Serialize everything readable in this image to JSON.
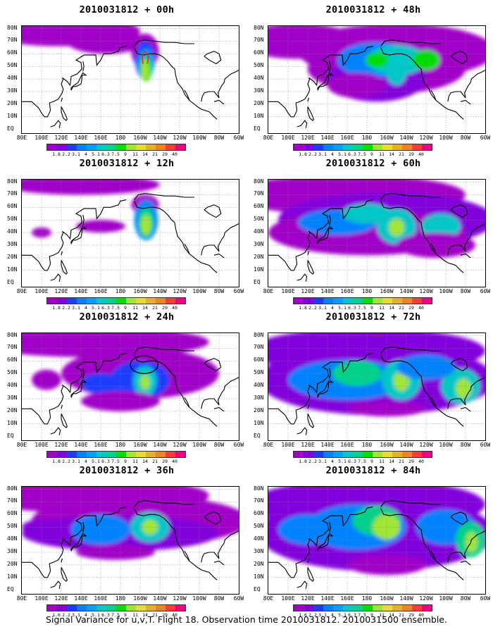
{
  "panels": [
    {
      "title": "2010031812 + 00h"
    },
    {
      "title": "2010031812 + 48h"
    },
    {
      "title": "2010031812 + 12h"
    },
    {
      "title": "2010031812 + 60h"
    },
    {
      "title": "2010031812 + 24h"
    },
    {
      "title": "2010031812 + 72h"
    },
    {
      "title": "2010031812 + 36h"
    },
    {
      "title": "2010031812 + 84h"
    }
  ],
  "lat_labels": [
    "80N",
    "70N",
    "60N",
    "50N",
    "40N",
    "30N",
    "20N",
    "10N",
    "EQ"
  ],
  "lon_labels": [
    "80E",
    "100E",
    "120E",
    "140E",
    "160E",
    "180",
    "160W",
    "140W",
    "120W",
    "100W",
    "80W",
    "60W"
  ],
  "colorbar": {
    "labels": [
      "1.8",
      "2.2",
      "3.1",
      "4",
      "5.1",
      "6.3",
      "7.5",
      "9",
      "11",
      "14",
      "21",
      "29",
      "40"
    ],
    "colors": [
      "#a000c8",
      "#8200dc",
      "#1e3cff",
      "#0082ff",
      "#00a0ff",
      "#00c8c8",
      "#00d28c",
      "#00dc00",
      "#a0e632",
      "#e6dc32",
      "#e6af2d",
      "#f08228",
      "#fa3c3c",
      "#f00082"
    ]
  },
  "colorbar_labels_alt": [
    "1.6",
    "2.2",
    "3.1",
    "4",
    "5.1",
    "6.3",
    "7.5",
    "9",
    "11",
    "14",
    "21",
    "29",
    "40"
  ],
  "caption": "Signal Variance for u,v,T. Flight 18. Observation time 2010031812. 2010031500 ensemble."
}
